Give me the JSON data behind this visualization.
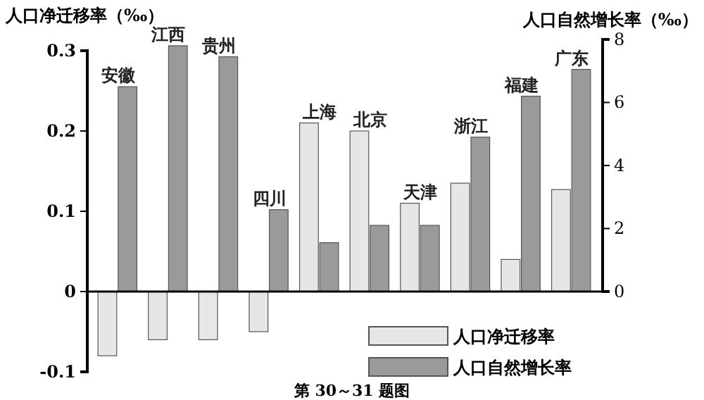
{
  "chart_data": {
    "type": "bar",
    "categories": [
      "安徽",
      "江西",
      "贵州",
      "四川",
      "上海",
      "北京",
      "天津",
      "浙江",
      "福建",
      "广东"
    ],
    "series": [
      {
        "name": "人口净迁移率",
        "color": "#e6e6e6",
        "values": [
          -0.08,
          -0.06,
          -0.06,
          -0.05,
          0.21,
          0.2,
          0.11,
          0.135,
          0.04,
          0.127
        ]
      },
      {
        "name": "人口自然增长率",
        "color": "#9a9a9a",
        "axis": "y2",
        "values": [
          6.5,
          7.8,
          7.45,
          2.6,
          1.55,
          2.1,
          2.1,
          4.9,
          6.2,
          7.05
        ]
      }
    ],
    "ylabel": "人口净迁移率（‰）",
    "y2label": "人口自然增长率（‰）",
    "ylim": [
      -0.1,
      0.3
    ],
    "yticks": [
      -0.1,
      0,
      0.1,
      0.2,
      0.3
    ],
    "y2lim": [
      0,
      8
    ],
    "y2ticks": [
      0,
      2,
      4,
      6,
      8
    ],
    "legend": "bottom right",
    "ref_lines": [
      {
        "axis": "y",
        "value": 0
      }
    ],
    "annotations": [
      "第 30～31 题图"
    ]
  }
}
